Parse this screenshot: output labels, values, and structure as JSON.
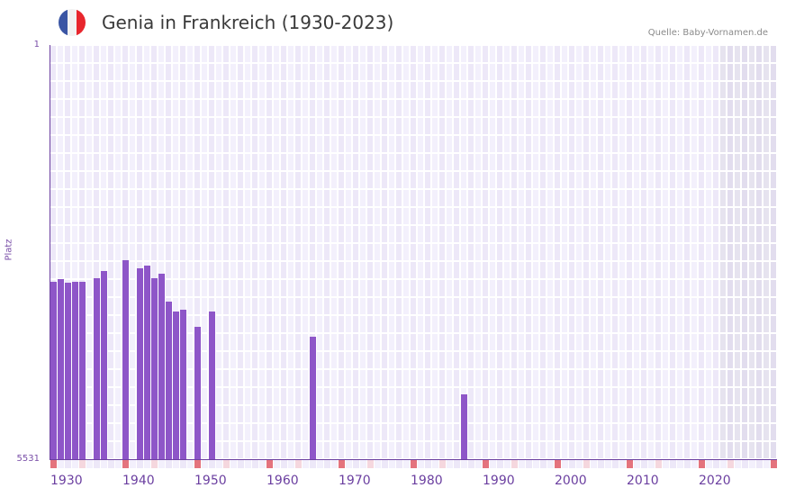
{
  "header": {
    "title": "Genia in Frankreich (1930-2023)",
    "source": "Quelle: Baby-Vornamen.de",
    "flag_icon": "france-flag-icon",
    "flag_colors": [
      "#3a55a4",
      "#f2f2f2",
      "#e8262d"
    ]
  },
  "axis": {
    "y_top_label": "1",
    "y_bottom_label": "5531",
    "y_title": "Platz",
    "x_ticks": [
      "1930",
      "1940",
      "1950",
      "1960",
      "1970",
      "1980",
      "1990",
      "2000",
      "2010",
      "2020"
    ]
  },
  "colors": {
    "bar": "#8e56c8",
    "axis": "#6b3fa0",
    "grid_cell_a": "#ede8f8",
    "grid_cell_b": "#f3f0fc",
    "grid_shaded_a": "#e2ddee",
    "grid_shaded_b": "#e6e3ef",
    "marker_strong": "#e4737d",
    "marker_light": "#f5d7de",
    "marker_neutral_a": "#ede8f8",
    "marker_neutral_b": "#f3f0fc"
  },
  "chart_data": {
    "type": "bar",
    "title": "Genia in Frankreich (1930-2023)",
    "xlabel": "",
    "ylabel": "Platz",
    "ylim": [
      5531,
      1
    ],
    "y_inverted": true,
    "x_range": [
      1930,
      2030
    ],
    "shaded_range": [
      2023,
      2030
    ],
    "grid": true,
    "legend": null,
    "x": [
      1930,
      1931,
      1932,
      1933,
      1934,
      1936,
      1937,
      1940,
      1942,
      1943,
      1944,
      1945,
      1946,
      1947,
      1948,
      1950,
      1952,
      1966,
      1987
    ],
    "values": [
      3162,
      3126,
      3174,
      3162,
      3162,
      3114,
      3018,
      2874,
      2982,
      2946,
      3114,
      3054,
      3426,
      3558,
      3534,
      3762,
      3558,
      3894,
      4664
    ]
  }
}
